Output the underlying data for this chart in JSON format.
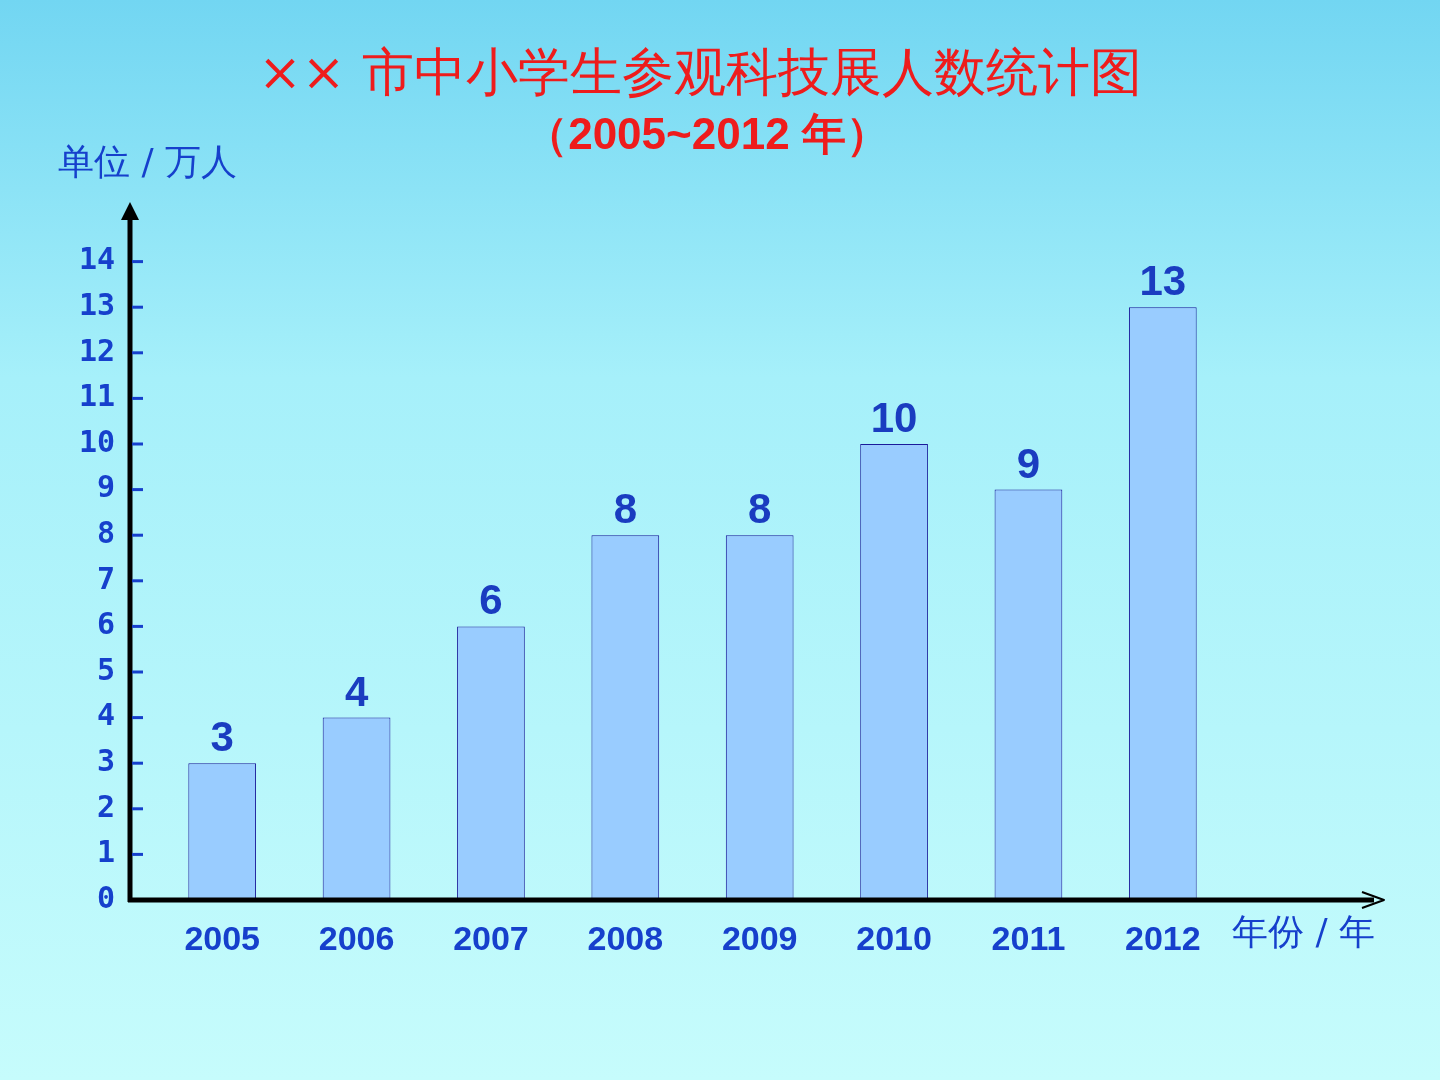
{
  "chart_data": {
    "type": "bar",
    "title": "×× 市中小学生参观科技展人数统计图",
    "subtitle": "（2005~2012 年）",
    "xlabel": "年份 / 年",
    "ylabel": "单位 / 万人",
    "categories": [
      "2005",
      "2006",
      "2007",
      "2008",
      "2009",
      "2010",
      "2011",
      "2012"
    ],
    "values": [
      3,
      4,
      6,
      8,
      8,
      10,
      9,
      13
    ],
    "color": "#99ccff",
    "ylim": [
      0,
      15
    ],
    "yticks": [
      0,
      1,
      2,
      3,
      4,
      5,
      6,
      7,
      8,
      9,
      10,
      11,
      12,
      13,
      14
    ],
    "data_labels": true
  }
}
